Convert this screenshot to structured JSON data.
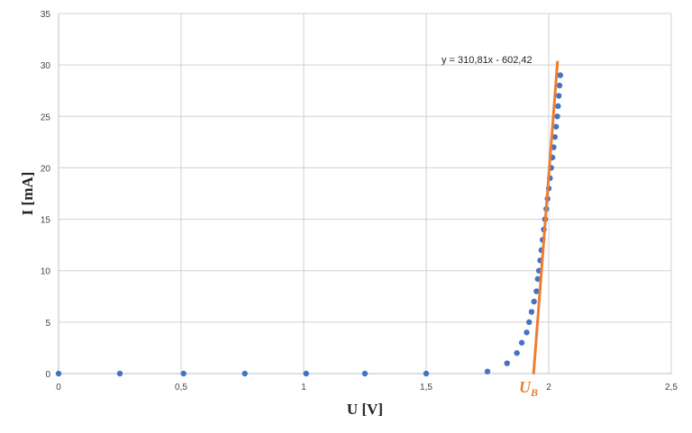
{
  "chart_data": {
    "type": "scatter",
    "xlabel": "U [V]",
    "ylabel": "I [mA]",
    "xlim": [
      0,
      2.5
    ],
    "ylim": [
      0,
      35
    ],
    "x_ticks": [
      0,
      0.5,
      1,
      1.5,
      2,
      2.5
    ],
    "x_tick_labels": [
      "0",
      "0,5",
      "1",
      "1,5",
      "2",
      "2,5"
    ],
    "y_ticks": [
      0,
      5,
      10,
      15,
      20,
      25,
      30,
      35
    ],
    "y_tick_labels": [
      "0",
      "5",
      "10",
      "15",
      "20",
      "25",
      "30",
      "35"
    ],
    "grid": true,
    "legend": "none",
    "series": [
      {
        "kind": "scatter",
        "color": "#4472C4",
        "points": [
          [
            0,
            0
          ],
          [
            0.25,
            0
          ],
          [
            0.51,
            0
          ],
          [
            0.76,
            0
          ],
          [
            1.01,
            0
          ],
          [
            1.25,
            0
          ],
          [
            1.5,
            0
          ],
          [
            1.75,
            0.2
          ],
          [
            1.83,
            1
          ],
          [
            1.87,
            2
          ],
          [
            1.89,
            3
          ],
          [
            1.91,
            4
          ],
          [
            1.92,
            5
          ],
          [
            1.93,
            6
          ],
          [
            1.94,
            7
          ],
          [
            1.95,
            8
          ],
          [
            1.955,
            9.2
          ],
          [
            1.96,
            10
          ],
          [
            1.965,
            11
          ],
          [
            1.97,
            12
          ],
          [
            1.975,
            13
          ],
          [
            1.98,
            14
          ],
          [
            1.985,
            15
          ],
          [
            1.99,
            16
          ],
          [
            1.995,
            17
          ],
          [
            2.0,
            18
          ],
          [
            2.005,
            19
          ],
          [
            2.01,
            20
          ],
          [
            2.015,
            21
          ],
          [
            2.02,
            22
          ],
          [
            2.025,
            23
          ],
          [
            2.03,
            24
          ],
          [
            2.035,
            25
          ],
          [
            2.038,
            26
          ],
          [
            2.041,
            27
          ],
          [
            2.044,
            28
          ],
          [
            2.047,
            29
          ]
        ]
      },
      {
        "kind": "trendline",
        "color": "#ED7D31",
        "slope": 310.81,
        "intercept": -602.42,
        "x_range": [
          1.938,
          2.036
        ]
      }
    ],
    "annotations": {
      "equation": "y = 310,81x - 602,42",
      "ub_main": "U",
      "ub_sub": "B",
      "ub_color": "#ED7D31"
    }
  }
}
